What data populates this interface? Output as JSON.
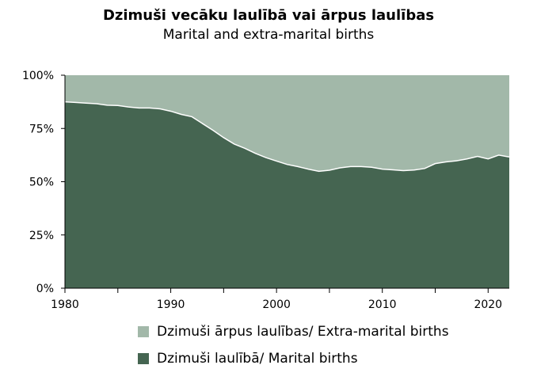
{
  "chart_data": {
    "type": "area",
    "stacked": true,
    "percent": true,
    "title": "Dzimuši vecāku laulībā vai ārpus laulības",
    "subtitle": "Marital and extra-marital births",
    "xlabel": "",
    "ylabel": "",
    "xlim": [
      1980,
      2022
    ],
    "ylim": [
      0,
      100
    ],
    "x_ticks": [
      "1980",
      "1990",
      "2000",
      "2010",
      "2020"
    ],
    "y_ticks": [
      "0%",
      "25%",
      "50%",
      "75%",
      "100%"
    ],
    "x": [
      1980,
      1981,
      1982,
      1983,
      1984,
      1985,
      1986,
      1987,
      1988,
      1989,
      1990,
      1991,
      1992,
      1993,
      1994,
      1995,
      1996,
      1997,
      1998,
      1999,
      2000,
      2001,
      2002,
      2003,
      2004,
      2005,
      2006,
      2007,
      2008,
      2009,
      2010,
      2011,
      2012,
      2013,
      2014,
      2015,
      2016,
      2017,
      2018,
      2019,
      2020,
      2021,
      2022
    ],
    "series": [
      {
        "name": "Dzimuši laulībā/ Marital births",
        "color": "#456551",
        "values": [
          87.5,
          87.2,
          86.9,
          86.6,
          85.9,
          85.8,
          85.1,
          84.6,
          84.6,
          84.2,
          83.1,
          81.6,
          80.5,
          77.3,
          74.1,
          70.7,
          67.7,
          65.7,
          63.3,
          61.3,
          59.7,
          58.1,
          57.1,
          55.9,
          54.9,
          55.4,
          56.5,
          57.1,
          57.1,
          56.8,
          55.9,
          55.6,
          55.2,
          55.5,
          56.2,
          58.5,
          59.3,
          59.8,
          60.7,
          61.9,
          60.7,
          62.5,
          61.6
        ]
      },
      {
        "name": "Dzimuši ārpus laulības/ Extra-marital births",
        "color": "#a2b8a9",
        "values": [
          12.5,
          12.8,
          13.1,
          13.4,
          14.1,
          14.2,
          14.9,
          15.4,
          15.4,
          15.8,
          16.9,
          18.4,
          19.5,
          22.7,
          25.9,
          29.3,
          32.3,
          34.3,
          36.7,
          38.7,
          40.3,
          41.9,
          42.9,
          44.1,
          45.1,
          44.6,
          43.5,
          42.9,
          42.9,
          43.2,
          44.1,
          44.4,
          44.8,
          44.5,
          43.8,
          41.5,
          40.7,
          40.2,
          39.3,
          38.1,
          39.3,
          37.5,
          38.4
        ]
      }
    ],
    "legend": {
      "position": "bottom",
      "order": [
        "Dzimuši ārpus laulības/ Extra-marital births",
        "Dzimuši laulībā/ Marital births"
      ]
    }
  }
}
